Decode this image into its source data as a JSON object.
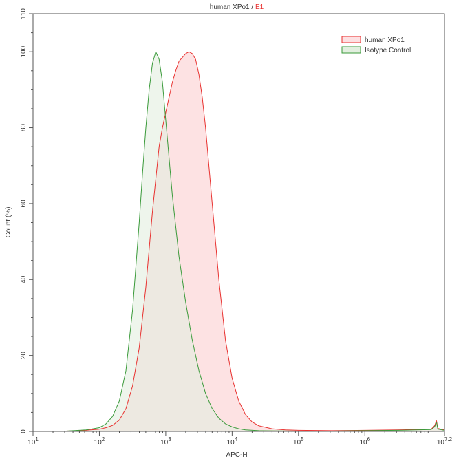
{
  "chart_data": {
    "type": "area",
    "title_main": "human XPo1",
    "title_sep": " / ",
    "title_gate": "E1",
    "title_gate_color": "#e8312f",
    "xlabel": "APC-H",
    "ylabel": "Count (%)",
    "xscale": "log",
    "xlim": [
      1,
      7.2
    ],
    "ylim": [
      0,
      110
    ],
    "x_ticks": [
      {
        "value": 1,
        "base": "10",
        "exp": "1"
      },
      {
        "value": 2,
        "base": "10",
        "exp": "2"
      },
      {
        "value": 3,
        "base": "10",
        "exp": "3"
      },
      {
        "value": 4,
        "base": "10",
        "exp": "4"
      },
      {
        "value": 5,
        "base": "10",
        "exp": "5"
      },
      {
        "value": 6,
        "base": "10",
        "exp": "6"
      },
      {
        "value": 7.2,
        "base": "10",
        "exp": "7.2"
      }
    ],
    "y_ticks": [
      "0",
      "20",
      "40",
      "60",
      "80",
      "100",
      "110"
    ],
    "y_tick_values": [
      0,
      20,
      40,
      60,
      80,
      100,
      110
    ],
    "legend_position": "top-right",
    "series": [
      {
        "name": "human XPo1",
        "stroke": "#e8312f",
        "fill": "#fde0e2",
        "x": [
          1.0,
          1.5,
          1.8,
          2.0,
          2.1,
          2.2,
          2.3,
          2.4,
          2.5,
          2.6,
          2.7,
          2.8,
          2.9,
          2.95,
          3.0,
          3.05,
          3.1,
          3.15,
          3.2,
          3.25,
          3.3,
          3.35,
          3.4,
          3.45,
          3.5,
          3.55,
          3.6,
          3.7,
          3.8,
          3.9,
          4.0,
          4.1,
          4.2,
          4.3,
          4.4,
          4.6,
          4.8,
          5.0,
          5.5,
          6.0,
          6.5,
          7.0,
          7.05,
          7.08,
          7.1,
          7.2
        ],
        "values": [
          0,
          0.1,
          0.3,
          0.6,
          1.0,
          1.6,
          3.0,
          6.0,
          12.0,
          22.0,
          38.0,
          58.0,
          75.0,
          80.0,
          84.0,
          88.0,
          92.0,
          95.0,
          97.5,
          98.5,
          99.5,
          100.0,
          99.5,
          98.0,
          94.0,
          88.0,
          80.0,
          60.0,
          40.0,
          24.0,
          14.0,
          8.0,
          4.5,
          2.5,
          1.5,
          0.7,
          0.4,
          0.3,
          0.2,
          0.3,
          0.4,
          0.6,
          1.5,
          2.8,
          0.8,
          0.4
        ]
      },
      {
        "name": "Isotype Control",
        "stroke": "#3a9a3a",
        "fill": "#e2efdf",
        "x": [
          1.0,
          1.5,
          1.8,
          2.0,
          2.1,
          2.2,
          2.3,
          2.4,
          2.5,
          2.6,
          2.65,
          2.7,
          2.75,
          2.8,
          2.85,
          2.9,
          2.95,
          3.0,
          3.05,
          3.1,
          3.2,
          3.3,
          3.4,
          3.5,
          3.6,
          3.7,
          3.8,
          3.9,
          4.0,
          4.1,
          4.2,
          4.4,
          4.6,
          5.0,
          5.5,
          6.0,
          6.5,
          7.0,
          7.05,
          7.08,
          7.1,
          7.2
        ],
        "values": [
          0,
          0.1,
          0.4,
          1.0,
          2.0,
          4.0,
          8.0,
          16.0,
          32.0,
          55.0,
          68.0,
          80.0,
          90.0,
          97.0,
          100.0,
          98.0,
          92.0,
          82.0,
          72.0,
          62.0,
          46.0,
          34.0,
          24.0,
          16.0,
          10.0,
          6.0,
          3.5,
          2.0,
          1.2,
          0.7,
          0.4,
          0.2,
          0.15,
          0.1,
          0.1,
          0.2,
          0.3,
          0.5,
          1.2,
          2.4,
          0.6,
          0.3
        ]
      }
    ]
  }
}
